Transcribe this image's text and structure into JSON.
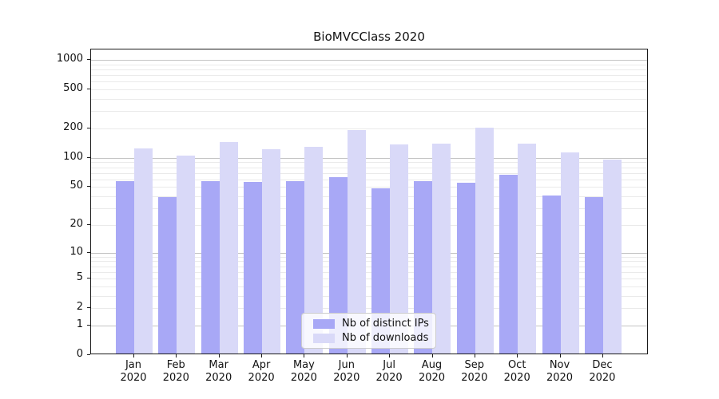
{
  "title": "BioMVCClass 2020",
  "chart_data": {
    "type": "bar",
    "title": "BioMVCClass 2020",
    "categories": [
      "Jan",
      "Feb",
      "Mar",
      "Apr",
      "May",
      "Jun",
      "Jul",
      "Aug",
      "Sep",
      "Oct",
      "Nov",
      "Dec"
    ],
    "year_label": "2020",
    "series": [
      {
        "name": "Nb of distinct IPs",
        "color": "#a8a8f6",
        "values": [
          56,
          38,
          56,
          54,
          56,
          61,
          47,
          55,
          53,
          64,
          39,
          38
        ]
      },
      {
        "name": "Nb of downloads",
        "color": "#d9d9f8",
        "values": [
          121,
          101,
          139,
          119,
          126,
          187,
          133,
          135,
          196,
          134,
          110,
          92
        ]
      }
    ],
    "yscale": "log1p",
    "y_ticks": [
      0,
      1,
      2,
      5,
      10,
      20,
      50,
      100,
      200,
      500,
      1000
    ],
    "ylim": [
      0,
      1275
    ],
    "grid": "both",
    "legend_position": "lower center",
    "colors": {
      "major_grid": "#c4c4c4",
      "minor_grid": "#eaeaea",
      "axis": "#1a1a1a"
    }
  }
}
